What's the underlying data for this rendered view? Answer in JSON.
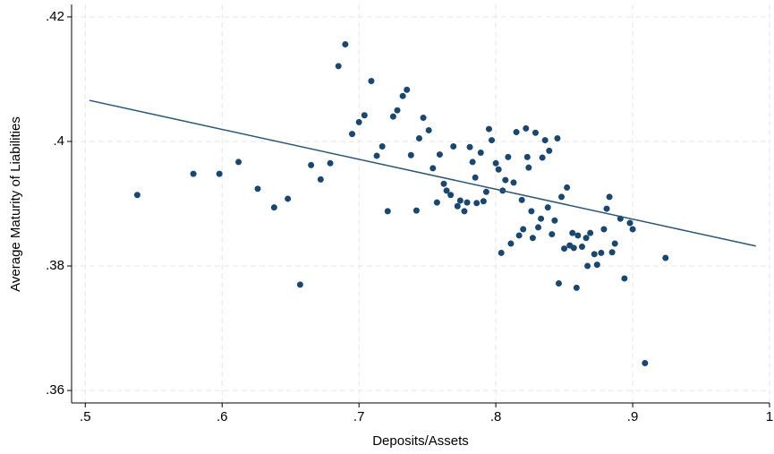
{
  "chart_data": {
    "type": "scatter",
    "x_label": "Deposits/Assets",
    "y_label": "Average Maturity of Liabilities",
    "color": "#1a476f",
    "grid": true,
    "xlim": [
      0.49,
      1.0
    ],
    "ylim": [
      0.358,
      0.422
    ],
    "xticks": [
      {
        "value": 0.5,
        "label": ".5"
      },
      {
        "value": 0.6,
        "label": ".6"
      },
      {
        "value": 0.7,
        "label": ".7"
      },
      {
        "value": 0.8,
        "label": ".8"
      },
      {
        "value": 0.9,
        "label": ".9"
      },
      1
    ],
    "yticks": [
      {
        "value": 0.36,
        "label": ".36"
      },
      {
        "value": 0.38,
        "label": ".38"
      },
      {
        "value": 0.4,
        "label": ".4"
      },
      {
        "value": 0.42,
        "label": ".42"
      }
    ],
    "x": [
      0.538,
      0.579,
      0.598,
      0.612,
      0.626,
      0.638,
      0.648,
      0.657,
      0.665,
      0.672,
      0.679,
      0.685,
      0.69,
      0.695,
      0.7,
      0.704,
      0.709,
      0.713,
      0.717,
      0.721,
      0.725,
      0.728,
      0.732,
      0.735,
      0.738,
      0.742,
      0.744,
      0.747,
      0.751,
      0.754,
      0.757,
      0.759,
      0.762,
      0.764,
      0.767,
      0.769,
      0.772,
      0.774,
      0.777,
      0.779,
      0.781,
      0.783,
      0.785,
      0.786,
      0.789,
      0.791,
      0.793,
      0.795,
      0.797,
      0.8,
      0.802,
      0.804,
      0.805,
      0.807,
      0.809,
      0.811,
      0.813,
      0.815,
      0.817,
      0.819,
      0.82,
      0.822,
      0.823,
      0.824,
      0.826,
      0.827,
      0.829,
      0.831,
      0.833,
      0.834,
      0.836,
      0.838,
      0.839,
      0.841,
      0.843,
      0.845,
      0.846,
      0.848,
      0.85,
      0.852,
      0.854,
      0.856,
      0.857,
      0.859,
      0.86,
      0.863,
      0.866,
      0.867,
      0.869,
      0.872,
      0.874,
      0.877,
      0.879,
      0.881,
      0.883,
      0.885,
      0.887,
      0.891,
      0.894,
      0.898,
      0.9,
      0.909,
      0.924
    ],
    "values": [
      0.3914,
      0.3948,
      0.3948,
      0.3967,
      0.3924,
      0.3894,
      0.3908,
      0.377,
      0.3962,
      0.3939,
      0.3965,
      0.4121,
      0.4156,
      0.4012,
      0.4031,
      0.4042,
      0.4097,
      0.3977,
      0.3992,
      0.3888,
      0.404,
      0.405,
      0.4073,
      0.4083,
      0.3978,
      0.3889,
      0.4005,
      0.4038,
      0.4018,
      0.3957,
      0.3902,
      0.3979,
      0.3932,
      0.3921,
      0.3914,
      0.3992,
      0.3896,
      0.3905,
      0.3888,
      0.3902,
      0.3991,
      0.3967,
      0.3942,
      0.3901,
      0.3982,
      0.3904,
      0.3919,
      0.402,
      0.4002,
      0.3965,
      0.3955,
      0.3821,
      0.3921,
      0.3938,
      0.3975,
      0.3836,
      0.3934,
      0.4015,
      0.3849,
      0.3906,
      0.3859,
      0.4021,
      0.3975,
      0.3958,
      0.3888,
      0.3845,
      0.4014,
      0.3862,
      0.3876,
      0.3974,
      0.4002,
      0.3894,
      0.3985,
      0.3851,
      0.3873,
      0.4005,
      0.3772,
      0.3911,
      0.3828,
      0.3926,
      0.3833,
      0.3853,
      0.3829,
      0.3765,
      0.3849,
      0.3831,
      0.3845,
      0.38,
      0.3853,
      0.3819,
      0.3802,
      0.3821,
      0.3859,
      0.3892,
      0.3911,
      0.3822,
      0.3836,
      0.3876,
      0.378,
      0.3869,
      0.3859,
      0.3644,
      0.3813
    ],
    "fit_line": {
      "x": [
        0.503,
        0.99
      ],
      "y": [
        0.4066,
        0.3832
      ],
      "color": "#2a5675"
    }
  }
}
